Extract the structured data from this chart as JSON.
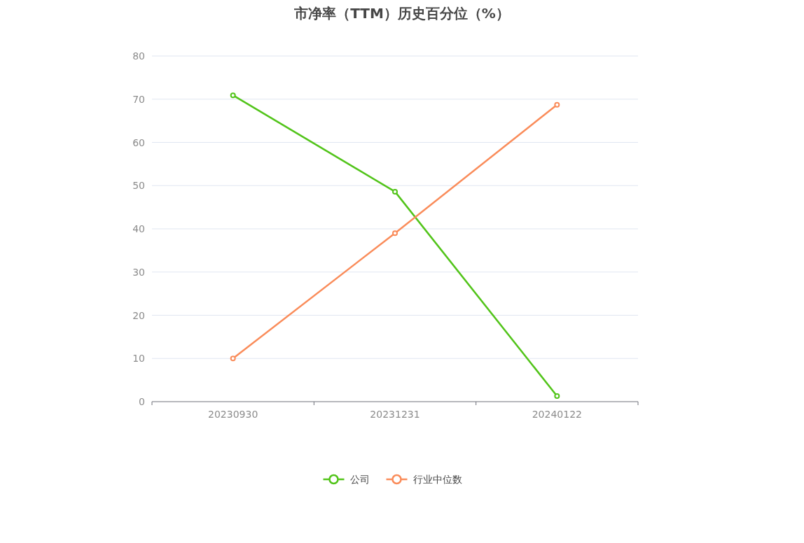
{
  "chart_data": {
    "type": "line",
    "title": "市净率（TTM）历史百分位（%）",
    "categories": [
      "20230930",
      "20231231",
      "20240122"
    ],
    "series": [
      {
        "name": "公司",
        "color": "#52c41a",
        "values": [
          70.9,
          48.6,
          1.3
        ]
      },
      {
        "name": "行业中位数",
        "color": "#fa8c5a",
        "values": [
          10.0,
          39.0,
          68.7
        ]
      }
    ],
    "ylim": [
      0,
      80
    ],
    "yticks": [
      0,
      10,
      20,
      30,
      40,
      50,
      60,
      70,
      80
    ],
    "grid": "y",
    "legend": "bottom",
    "marker": "circle"
  }
}
